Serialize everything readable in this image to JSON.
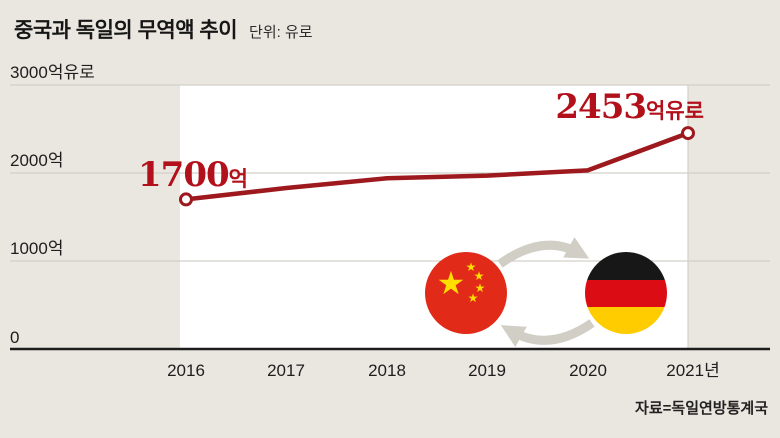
{
  "chart_data": {
    "type": "line",
    "title": "중국과 독일의 무역액 추이",
    "unit_label": "단위: 유로",
    "source": "자료=독일연방통계국",
    "x": [
      2016,
      2017,
      2018,
      2019,
      2020,
      2021
    ],
    "x_tick_labels": [
      "2016",
      "2017",
      "2018",
      "2019",
      "2020",
      "2021년"
    ],
    "values": [
      1700,
      1830,
      1940,
      1970,
      2030,
      2453
    ],
    "ylim": [
      0,
      3000
    ],
    "y_ticks": [
      0,
      1000,
      2000,
      3000
    ],
    "y_tick_labels": [
      "0",
      "1000억",
      "2000억",
      "3000억유로"
    ],
    "grid": true,
    "legend": "none",
    "annotations": [
      {
        "x": "2016",
        "value": "1700",
        "suffix": "억"
      },
      {
        "x": "2021",
        "value": "2453",
        "suffix": "억유로"
      }
    ],
    "icons": [
      {
        "name": "china-flag-icon"
      },
      {
        "name": "germany-flag-icon"
      },
      {
        "name": "exchange-arrows-icon"
      }
    ],
    "colors": {
      "background": "#eae7e0",
      "plot_background": "#ffffff",
      "line": "#9e191d",
      "annotation_text": "#b2101a",
      "gridline": "#d3d0c8",
      "axis": "#1d1d1d",
      "china_flag_red": "#e12a18",
      "star_yellow": "#ffde00",
      "germany_black": "#171717",
      "germany_red": "#dc0c15",
      "germany_gold": "#ffcc00",
      "arrow_gray": "#d1cec6"
    }
  }
}
